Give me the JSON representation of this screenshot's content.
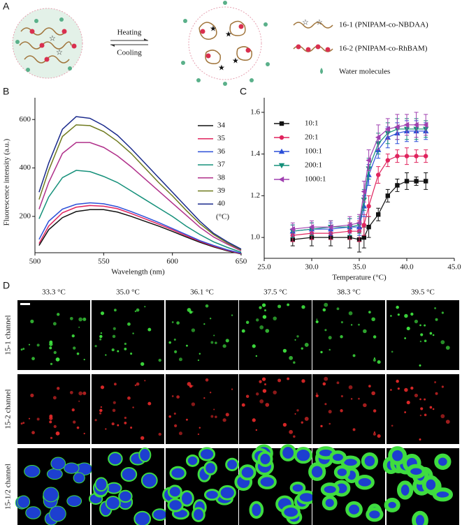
{
  "panel_labels": [
    "A",
    "B",
    "C",
    "D"
  ],
  "panel_a": {
    "heating": "Heating",
    "cooling": "Cooling",
    "legend": [
      "16-1 (PNIPAM-co-NBDAA)",
      "16-2 (PNIPAM-co-RhBAM)",
      "Water molecules"
    ]
  },
  "chart_data": [
    {
      "type": "line",
      "xlabel": "Wavelength (nm)",
      "ylabel": "Fluorescence intensity (a.u.)",
      "x": [
        503,
        510,
        520,
        530,
        540,
        550,
        560,
        570,
        580,
        590,
        600,
        610,
        620,
        630,
        640,
        650
      ],
      "xlim": [
        500,
        650
      ],
      "xticks": [
        500,
        550,
        600,
        650
      ],
      "ylim": [
        50,
        690
      ],
      "yticks": [
        200,
        400,
        600
      ],
      "legend_unit": "(°C)",
      "series": [
        {
          "name": "34",
          "color": "#111111",
          "values": [
            80,
            145,
            195,
            220,
            228,
            228,
            218,
            200,
            180,
            160,
            138,
            115,
            93,
            74,
            58,
            45
          ]
        },
        {
          "name": "35",
          "color": "#e0245e",
          "values": [
            88,
            160,
            215,
            238,
            245,
            242,
            232,
            212,
            190,
            168,
            145,
            120,
            97,
            77,
            60,
            46
          ]
        },
        {
          "name": "36",
          "color": "#2b4fd8",
          "values": [
            105,
            180,
            230,
            250,
            256,
            252,
            240,
            220,
            198,
            175,
            150,
            125,
            100,
            80,
            62,
            48
          ]
        },
        {
          "name": "37",
          "color": "#15907a",
          "values": [
            190,
            280,
            360,
            390,
            385,
            365,
            340,
            305,
            270,
            235,
            200,
            160,
            125,
            95,
            72,
            52
          ]
        },
        {
          "name": "38",
          "color": "#b0308a",
          "values": [
            230,
            340,
            460,
            505,
            505,
            485,
            450,
            405,
            355,
            305,
            255,
            205,
            155,
            115,
            85,
            58
          ]
        },
        {
          "name": "39",
          "color": "#6f7a1e",
          "values": [
            270,
            390,
            530,
            578,
            575,
            550,
            510,
            460,
            400,
            340,
            285,
            225,
            170,
            125,
            90,
            62
          ]
        },
        {
          "name": "40",
          "color": "#1a2a8c",
          "values": [
            300,
            420,
            560,
            612,
            605,
            575,
            535,
            480,
            420,
            360,
            300,
            240,
            180,
            130,
            95,
            65
          ]
        }
      ]
    },
    {
      "type": "errorline",
      "xlabel": "Temperature (°C)",
      "x": [
        28,
        30,
        32,
        34,
        35,
        35.5,
        36,
        37,
        38,
        39,
        40,
        41,
        42
      ],
      "xlim": [
        25,
        45
      ],
      "xticks": [
        {
          "value": 25,
          "label": "25.0"
        },
        {
          "value": 30,
          "label": "30.0"
        },
        {
          "value": 35,
          "label": "35.0"
        },
        {
          "value": 40,
          "label": "40.0"
        },
        {
          "value": 45,
          "label": "45.0"
        }
      ],
      "ylim": [
        0.9,
        1.67
      ],
      "yticks": [
        {
          "value": 1,
          "label": "1.0"
        },
        1.2,
        1.4,
        1.6
      ],
      "series": [
        {
          "name": "10:1",
          "color": "#111111",
          "marker": "square",
          "values": [
            0.99,
            1.0,
            1.0,
            1.0,
            0.99,
            1.0,
            1.05,
            1.11,
            1.2,
            1.25,
            1.27,
            1.27,
            1.27
          ],
          "errors": [
            0.03,
            0.04,
            0.04,
            0.05,
            0.06,
            0.05,
            0.05,
            0.03,
            0.03,
            0.03,
            0.04,
            0.02,
            0.04
          ]
        },
        {
          "name": "20:1",
          "color": "#e0245e",
          "marker": "circle",
          "values": [
            1.01,
            1.02,
            1.02,
            1.03,
            1.03,
            1.06,
            1.15,
            1.3,
            1.37,
            1.39,
            1.39,
            1.39,
            1.39
          ],
          "errors": [
            0.03,
            0.03,
            0.03,
            0.04,
            0.05,
            0.05,
            0.05,
            0.04,
            0.03,
            0.03,
            0.04,
            0.03,
            0.03
          ]
        },
        {
          "name": "100:1",
          "color": "#2b4fd8",
          "marker": "triangle-up",
          "values": [
            1.03,
            1.04,
            1.04,
            1.05,
            1.05,
            1.15,
            1.3,
            1.42,
            1.48,
            1.5,
            1.51,
            1.51,
            1.51
          ],
          "errors": [
            0.03,
            0.03,
            0.03,
            0.04,
            0.04,
            0.05,
            0.05,
            0.04,
            0.05,
            0.05,
            0.05,
            0.05,
            0.04
          ]
        },
        {
          "name": "200:1",
          "color": "#15907a",
          "marker": "triangle-down",
          "values": [
            1.03,
            1.04,
            1.05,
            1.05,
            1.06,
            1.18,
            1.33,
            1.45,
            1.5,
            1.52,
            1.52,
            1.52,
            1.52
          ],
          "errors": [
            0.03,
            0.03,
            0.03,
            0.04,
            0.04,
            0.05,
            0.05,
            0.05,
            0.05,
            0.05,
            0.05,
            0.05,
            0.04
          ]
        },
        {
          "name": "1000:1",
          "color": "#a040b0",
          "marker": "triangle-left",
          "values": [
            1.04,
            1.05,
            1.05,
            1.06,
            1.07,
            1.22,
            1.37,
            1.48,
            1.52,
            1.53,
            1.54,
            1.54,
            1.54
          ],
          "errors": [
            0.03,
            0.03,
            0.03,
            0.04,
            0.04,
            0.05,
            0.05,
            0.06,
            0.05,
            0.06,
            0.05,
            0.06,
            0.05
          ]
        }
      ]
    }
  ],
  "panel_d": {
    "temperatures": [
      "33.3 °C",
      "35.0 °C",
      "36.1 °C",
      "37.5 °C",
      "38.3 °C",
      "39.5 °C"
    ],
    "channels": [
      "15-1 channel",
      "15-2 channel",
      "15-1/2 channel"
    ]
  }
}
